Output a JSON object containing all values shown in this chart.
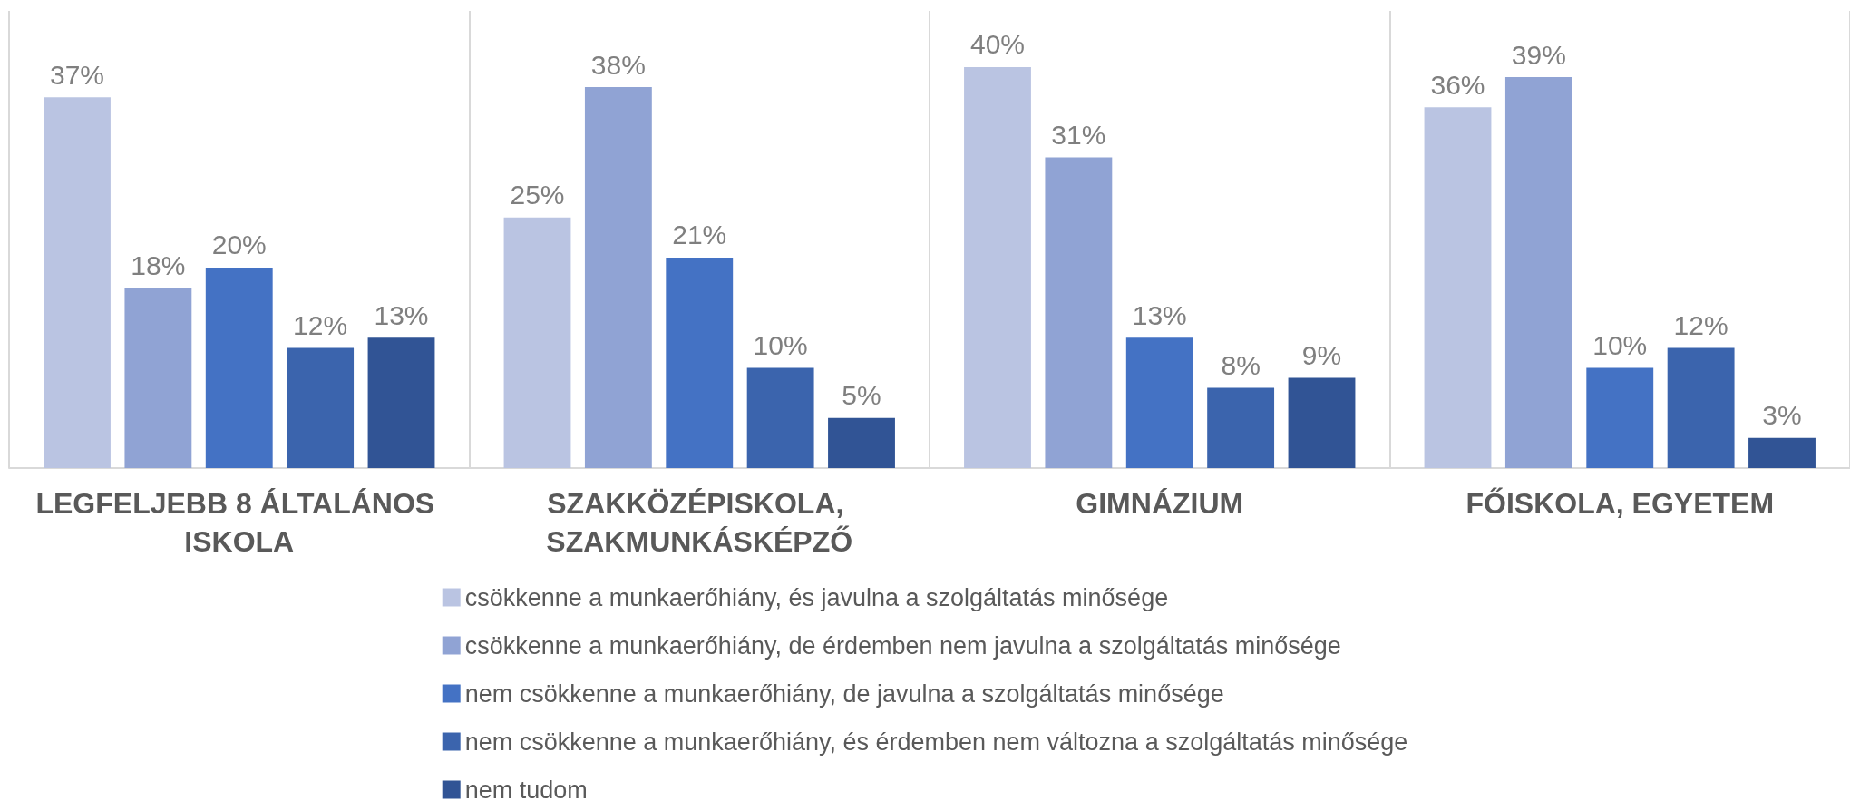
{
  "chart_data": {
    "type": "bar",
    "categories": [
      "LEGFELJEBB 8 ÁLTALÁNOS ISKOLA",
      "SZAKKÖZÉPISKOLA, SZAKMUNKÁSKÉPZŐ",
      "GIMNÁZIUM",
      "FŐISKOLA, EGYETEM"
    ],
    "series": [
      {
        "name": "csökkenne a munkaerőhiány, és javulna a szolgáltatás minősége",
        "color": "#bac4e2",
        "values": [
          37,
          25,
          40,
          36
        ],
        "value_labels": [
          "37%",
          "25%",
          "40%",
          "36%"
        ]
      },
      {
        "name": "csökkenne a munkaerőhiány, de érdemben nem javulna a szolgáltatás minősége",
        "color": "#90a3d4",
        "values": [
          18,
          38,
          31,
          39
        ],
        "value_labels": [
          "18%",
          "38%",
          "31%",
          "39%"
        ]
      },
      {
        "name": "nem csökkenne a munkaerőhiány, de javulna a szolgáltatás minősége",
        "color": "#4472c4",
        "values": [
          20,
          21,
          13,
          10
        ],
        "value_labels": [
          "20%",
          "21%",
          "13%",
          "10%"
        ]
      },
      {
        "name": "nem csökkenne a munkaerőhiány, és érdemben nem változna a szolgáltatás minősége",
        "color": "#3b64ad",
        "values": [
          12,
          10,
          8,
          12
        ],
        "value_labels": [
          "12%",
          "10%",
          "8%",
          "12%"
        ]
      },
      {
        "name": "nem tudom",
        "color": "#315495",
        "values": [
          13,
          5,
          9,
          3
        ],
        "value_labels": [
          "13%",
          "5%",
          "9%",
          "3%"
        ]
      }
    ],
    "legend": "bottom",
    "grid": "x",
    "tick_labels": "x"
  }
}
